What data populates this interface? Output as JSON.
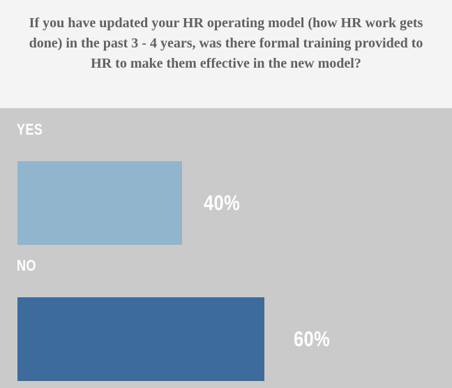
{
  "header": {
    "question": "If you have updated your HR operating model (how HR work gets done) in the past 3 - 4 years, was there formal training provided to HR to make them effective in the new model?"
  },
  "chart_data": {
    "type": "bar",
    "orientation": "horizontal",
    "title": "",
    "categories": [
      "YES",
      "NO"
    ],
    "values": [
      40,
      60
    ],
    "value_labels": [
      "40%",
      "60%"
    ],
    "bar_colors": [
      "#92b5ce",
      "#3d6b9c"
    ],
    "xlim": [
      0,
      100
    ],
    "grid": false,
    "legend": false,
    "background": "#cacaca",
    "label_color": "#ffffff"
  },
  "colors": {
    "header_bg": "#f4f4f4",
    "title_text": "#5f6163"
  }
}
